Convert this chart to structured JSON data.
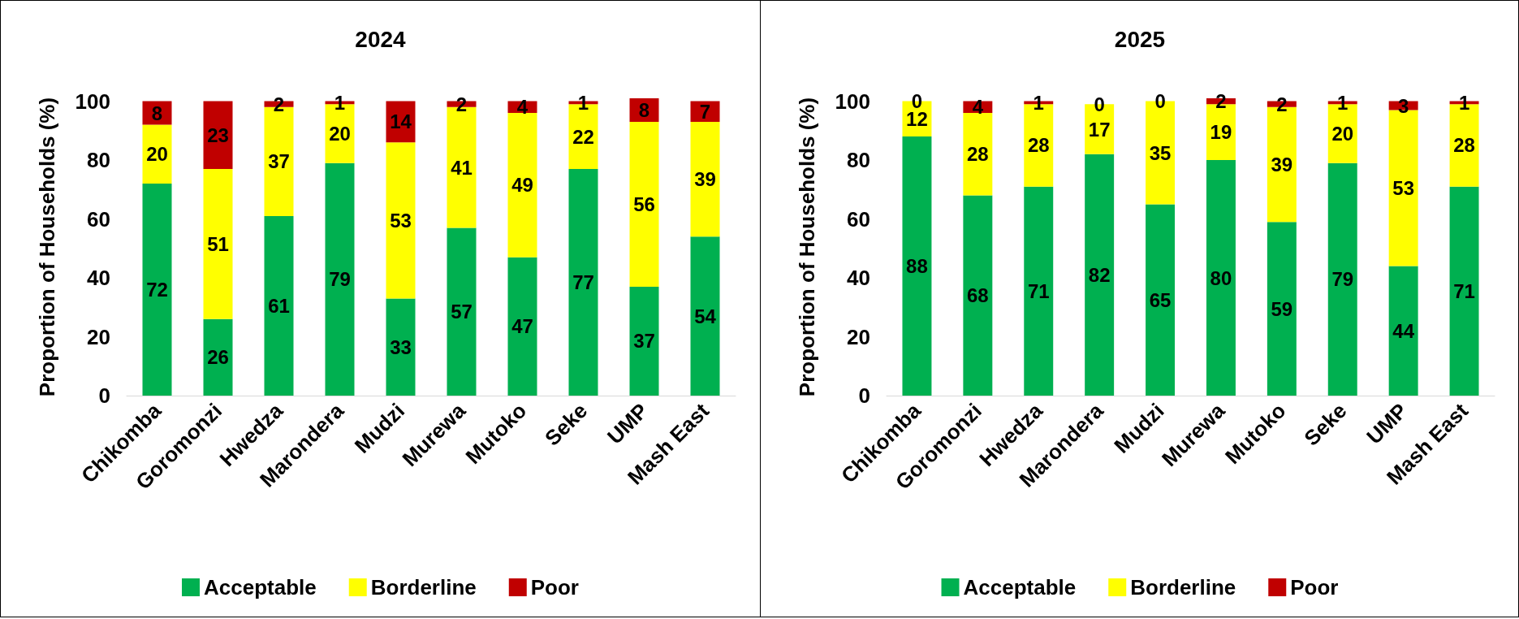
{
  "chart_data": [
    {
      "type": "bar",
      "title": "2024",
      "ylabel": "Proportion of Households (%)",
      "categories": [
        "Chikomba",
        "Goromonzi",
        "Hwedza",
        "Marondera",
        "Mudzi",
        "Murewa",
        "Mutoko",
        "Seke",
        "UMP",
        "Mash East"
      ],
      "stacked": true,
      "data_labels": true,
      "grid": false,
      "legend": "bottom",
      "ylim": [
        0,
        101
      ],
      "yticks": [
        0,
        20,
        40,
        60,
        80,
        100
      ],
      "series": [
        {
          "name": "Acceptable",
          "color": "#00b050",
          "values": [
            72,
            26,
            61,
            79,
            33,
            57,
            47,
            77,
            37,
            54
          ]
        },
        {
          "name": "Borderline",
          "color": "#ffff00",
          "values": [
            20,
            51,
            37,
            20,
            53,
            41,
            49,
            22,
            56,
            39
          ]
        },
        {
          "name": "Poor",
          "color": "#c00000",
          "values": [
            8,
            23,
            2,
            1,
            14,
            2,
            4,
            1,
            8,
            7
          ]
        }
      ]
    },
    {
      "type": "bar",
      "title": "2025",
      "ylabel": "Proportion of Households (%)",
      "categories": [
        "Chikomba",
        "Goromonzi",
        "Hwedza",
        "Marondera",
        "Mudzi",
        "Murewa",
        "Mutoko",
        "Seke",
        "UMP",
        "Mash East"
      ],
      "stacked": true,
      "data_labels": true,
      "grid": false,
      "legend": "bottom",
      "ylim": [
        0,
        101
      ],
      "yticks": [
        0,
        20,
        40,
        60,
        80,
        100
      ],
      "series": [
        {
          "name": "Acceptable",
          "color": "#00b050",
          "values": [
            88,
            68,
            71,
            82,
            65,
            80,
            59,
            79,
            44,
            71
          ]
        },
        {
          "name": "Borderline",
          "color": "#ffff00",
          "values": [
            12,
            28,
            28,
            17,
            35,
            19,
            39,
            20,
            53,
            28
          ]
        },
        {
          "name": "Poor",
          "color": "#c00000",
          "values": [
            0,
            4,
            1,
            0,
            0,
            2,
            2,
            1,
            3,
            1
          ]
        }
      ]
    }
  ]
}
